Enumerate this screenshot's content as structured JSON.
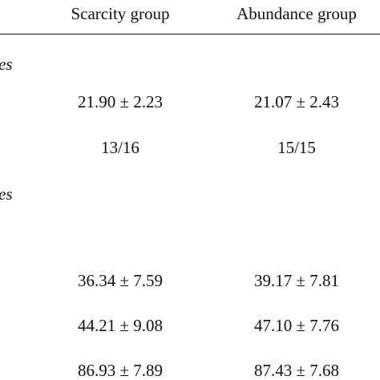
{
  "table": {
    "header": [
      "Scarcity group",
      "Abundance group"
    ],
    "sections": [
      {
        "label": "es",
        "rows": [
          [
            "21.90 ± 2.23",
            "21.07 ± 2.43"
          ],
          [
            "13/16",
            "15/15"
          ]
        ]
      },
      {
        "label": "es",
        "rows": [
          [
            "36.34 ± 7.59",
            "39.17 ± 7.81"
          ],
          [
            "44.21 ± 9.08",
            "47.10 ± 7.76"
          ],
          [
            "86.93 ± 7.89",
            "87.43 ± 7.68"
          ]
        ]
      }
    ]
  }
}
